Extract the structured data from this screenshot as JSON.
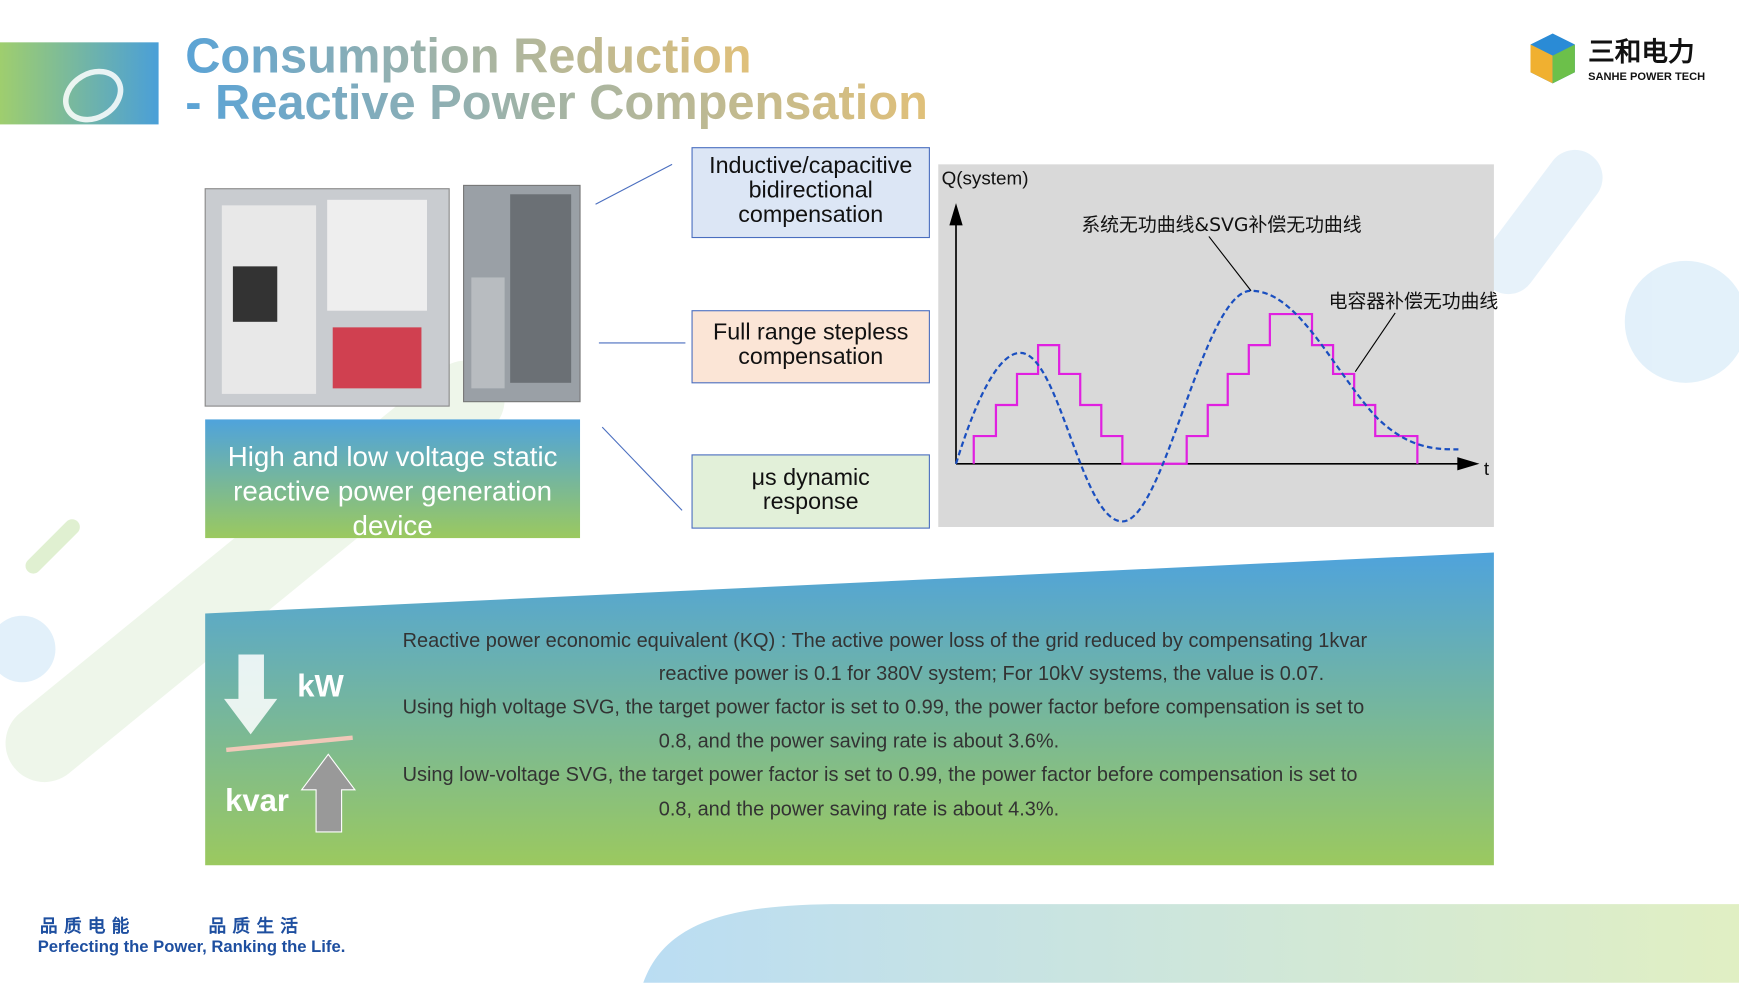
{
  "header": {
    "title_lines": [
      "Consumption Reduction",
      "- Reactive Power Compensation"
    ]
  },
  "logo": {
    "name": "三和电力",
    "subtitle": "SANHE POWER TECH"
  },
  "device": {
    "caption_lines": [
      "High and low voltage static",
      "reactive power generation",
      "device"
    ]
  },
  "features": [
    {
      "lines": [
        "Inductive/capacitive",
        "bidirectional",
        "compensation"
      ]
    },
    {
      "lines": [
        "Full range stepless",
        "compensation"
      ]
    },
    {
      "lines": [
        "μs dynamic",
        "response"
      ]
    }
  ],
  "diagram": {
    "y_axis_label": "Q(system)",
    "x_axis_label": "t",
    "curve_labels": [
      "系统无功曲线&SVG补偿无功曲线",
      "电容器补偿无功曲线"
    ]
  },
  "info": {
    "lines": [
      "Reactive power economic equivalent (KQ) : The active power loss of the grid reduced by compensating 1kvar",
      "reactive power is 0.1 for 380V system; For 10kV systems, the value is 0.07.",
      "Using high voltage SVG, the target power factor is set to 0.99, the power factor before compensation is set to",
      "0.8, and the power saving rate is about 3.6%.",
      "Using low-voltage SVG, the target power factor is set to 0.99, the power factor before compensation is set to",
      "0.8, and the power saving rate is about 4.3%."
    ]
  },
  "kw_label": "kW",
  "kvar_label": "kvar",
  "footer": {
    "slogan_cn": [
      "品 质 电 能",
      "品 质 生 活"
    ],
    "slogan_en": "Perfecting the Power, Ranking the Life."
  }
}
